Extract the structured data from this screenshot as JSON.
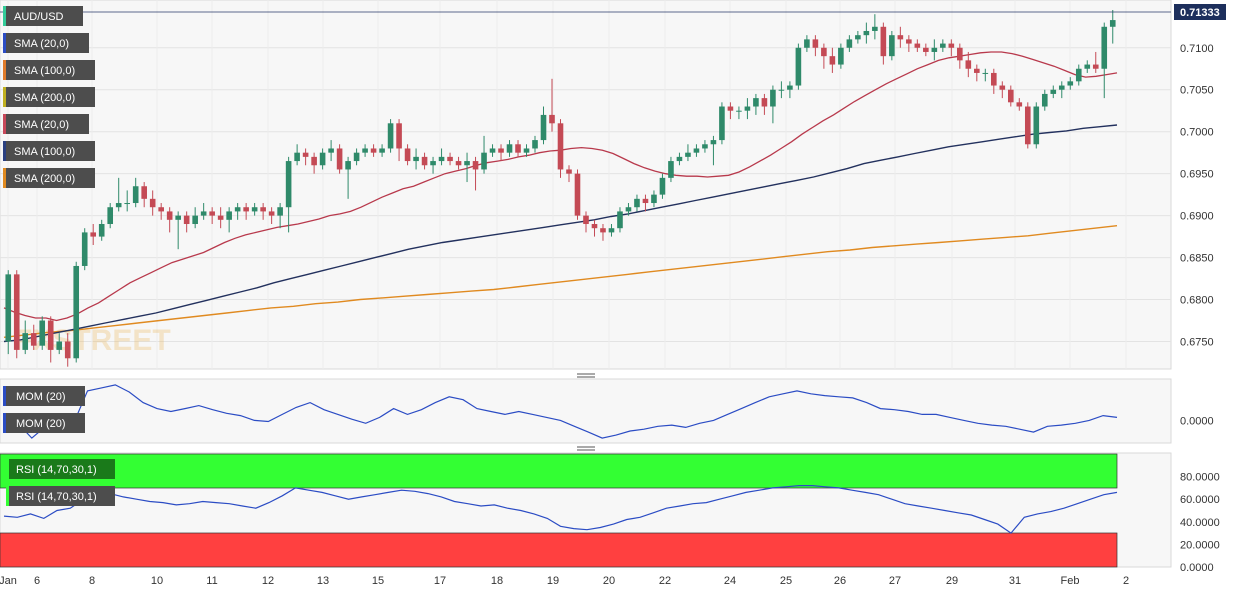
{
  "chart_data": [
    {
      "type": "candlestick",
      "title": "AUD/USD",
      "last_price": "0.71333",
      "y_ticks": [
        "0.7100",
        "0.7050",
        "0.7000",
        "0.6950",
        "0.6900",
        "0.6850",
        "0.6800",
        "0.6750"
      ],
      "ylim": [
        0.6722,
        0.7145
      ],
      "x_ticks": [
        "Jan",
        "6",
        "8",
        "10",
        "11",
        "12",
        "13",
        "15",
        "17",
        "18",
        "19",
        "20",
        "22",
        "24",
        "25",
        "26",
        "27",
        "29",
        "31",
        "Feb",
        "2"
      ],
      "indicator_labels": [
        "SMA (20,0)",
        "SMA (100,0)",
        "SMA (200,0)",
        "SMA (20,0)",
        "SMA (100,0)",
        "SMA (200,0)"
      ],
      "candles": [
        [
          0.675,
          0.683,
          0.6735,
          0.6835
        ],
        [
          0.683,
          0.674,
          0.673,
          0.6835
        ],
        [
          0.674,
          0.676,
          0.6735,
          0.6775
        ],
        [
          0.676,
          0.6745,
          0.674,
          0.677
        ],
        [
          0.6745,
          0.6775,
          0.674,
          0.678
        ],
        [
          0.6775,
          0.674,
          0.6725,
          0.678
        ],
        [
          0.674,
          0.675,
          0.6735,
          0.676
        ],
        [
          0.675,
          0.673,
          0.672,
          0.676
        ],
        [
          0.673,
          0.684,
          0.6725,
          0.6845
        ],
        [
          0.684,
          0.688,
          0.6835,
          0.6885
        ],
        [
          0.688,
          0.6875,
          0.6865,
          0.689
        ],
        [
          0.6875,
          0.689,
          0.687,
          0.6895
        ],
        [
          0.689,
          0.691,
          0.6885,
          0.6915
        ],
        [
          0.691,
          0.6915,
          0.6905,
          0.6945
        ],
        [
          0.6915,
          0.6915,
          0.6905,
          0.693
        ],
        [
          0.6915,
          0.6935,
          0.691,
          0.6945
        ],
        [
          0.6935,
          0.692,
          0.691,
          0.694
        ],
        [
          0.692,
          0.691,
          0.69,
          0.693
        ],
        [
          0.691,
          0.6905,
          0.6895,
          0.6915
        ],
        [
          0.6905,
          0.6895,
          0.688,
          0.691
        ],
        [
          0.6895,
          0.69,
          0.686,
          0.6905
        ],
        [
          0.69,
          0.689,
          0.688,
          0.6905
        ],
        [
          0.689,
          0.69,
          0.6885,
          0.691
        ],
        [
          0.69,
          0.6905,
          0.6895,
          0.6915
        ],
        [
          0.6905,
          0.69,
          0.689,
          0.691
        ],
        [
          0.69,
          0.6895,
          0.6885,
          0.691
        ],
        [
          0.6895,
          0.6905,
          0.688,
          0.691
        ],
        [
          0.6905,
          0.691,
          0.6895,
          0.6915
        ],
        [
          0.691,
          0.6905,
          0.6895,
          0.6915
        ],
        [
          0.6905,
          0.691,
          0.69,
          0.6915
        ],
        [
          0.691,
          0.6905,
          0.6895,
          0.6915
        ],
        [
          0.6905,
          0.69,
          0.689,
          0.691
        ],
        [
          0.69,
          0.691,
          0.6885,
          0.6915
        ],
        [
          0.691,
          0.6965,
          0.688,
          0.697
        ],
        [
          0.6965,
          0.6975,
          0.696,
          0.6985
        ],
        [
          0.6975,
          0.697,
          0.696,
          0.698
        ],
        [
          0.697,
          0.696,
          0.695,
          0.6975
        ],
        [
          0.696,
          0.6975,
          0.6955,
          0.698
        ],
        [
          0.6975,
          0.698,
          0.6965,
          0.699
        ],
        [
          0.698,
          0.6955,
          0.695,
          0.6985
        ],
        [
          0.6955,
          0.6965,
          0.692,
          0.697
        ],
        [
          0.6965,
          0.6975,
          0.696,
          0.698
        ],
        [
          0.6975,
          0.698,
          0.697,
          0.6985
        ],
        [
          0.698,
          0.6975,
          0.697,
          0.6985
        ],
        [
          0.6975,
          0.698,
          0.697,
          0.6985
        ],
        [
          0.698,
          0.701,
          0.6975,
          0.7015
        ],
        [
          0.701,
          0.698,
          0.6965,
          0.7015
        ],
        [
          0.698,
          0.6965,
          0.696,
          0.6985
        ],
        [
          0.6965,
          0.697,
          0.6955,
          0.698
        ],
        [
          0.697,
          0.696,
          0.6955,
          0.6975
        ],
        [
          0.696,
          0.6965,
          0.695,
          0.697
        ],
        [
          0.6965,
          0.697,
          0.696,
          0.698
        ],
        [
          0.697,
          0.6965,
          0.696,
          0.6975
        ],
        [
          0.6965,
          0.696,
          0.6955,
          0.697
        ],
        [
          0.696,
          0.6965,
          0.694,
          0.6975
        ],
        [
          0.6965,
          0.6955,
          0.693,
          0.697
        ],
        [
          0.6955,
          0.6975,
          0.695,
          0.6995
        ],
        [
          0.6975,
          0.698,
          0.697,
          0.6985
        ],
        [
          0.698,
          0.6975,
          0.6965,
          0.6985
        ],
        [
          0.6975,
          0.6985,
          0.697,
          0.699
        ],
        [
          0.6985,
          0.6975,
          0.697,
          0.699
        ],
        [
          0.6975,
          0.698,
          0.697,
          0.6985
        ],
        [
          0.698,
          0.699,
          0.6975,
          0.6995
        ],
        [
          0.699,
          0.702,
          0.6985,
          0.703
        ],
        [
          0.702,
          0.701,
          0.7,
          0.7063
        ],
        [
          0.701,
          0.6955,
          0.6945,
          0.7015
        ],
        [
          0.6955,
          0.695,
          0.694,
          0.696
        ],
        [
          0.695,
          0.69,
          0.6895,
          0.6955
        ],
        [
          0.69,
          0.689,
          0.688,
          0.6905
        ],
        [
          0.689,
          0.6885,
          0.6875,
          0.6895
        ],
        [
          0.6885,
          0.688,
          0.687,
          0.689
        ],
        [
          0.688,
          0.6885,
          0.6875,
          0.689
        ],
        [
          0.6885,
          0.6905,
          0.688,
          0.691
        ],
        [
          0.6905,
          0.691,
          0.69,
          0.6915
        ],
        [
          0.691,
          0.692,
          0.6905,
          0.6925
        ],
        [
          0.692,
          0.6915,
          0.6905,
          0.6925
        ],
        [
          0.6915,
          0.6925,
          0.691,
          0.693
        ],
        [
          0.6925,
          0.6945,
          0.692,
          0.695
        ],
        [
          0.6945,
          0.6965,
          0.694,
          0.697
        ],
        [
          0.6965,
          0.697,
          0.696,
          0.6975
        ],
        [
          0.697,
          0.6975,
          0.6965,
          0.6985
        ],
        [
          0.6975,
          0.698,
          0.697,
          0.6985
        ],
        [
          0.698,
          0.6985,
          0.6975,
          0.699
        ],
        [
          0.6985,
          0.699,
          0.696,
          0.6995
        ],
        [
          0.699,
          0.703,
          0.6985,
          0.7035
        ],
        [
          0.703,
          0.7025,
          0.7015,
          0.7035
        ],
        [
          0.7025,
          0.7025,
          0.7015,
          0.703
        ],
        [
          0.7025,
          0.703,
          0.7015,
          0.704
        ],
        [
          0.703,
          0.704,
          0.702,
          0.7045
        ],
        [
          0.704,
          0.703,
          0.702,
          0.7045
        ],
        [
          0.703,
          0.705,
          0.701,
          0.7055
        ],
        [
          0.705,
          0.705,
          0.704,
          0.706
        ],
        [
          0.705,
          0.7055,
          0.704,
          0.706
        ],
        [
          0.7055,
          0.71,
          0.705,
          0.7105
        ],
        [
          0.71,
          0.711,
          0.7095,
          0.7115
        ],
        [
          0.711,
          0.71,
          0.709,
          0.7115
        ],
        [
          0.71,
          0.709,
          0.7075,
          0.7105
        ],
        [
          0.709,
          0.708,
          0.707,
          0.71
        ],
        [
          0.708,
          0.71,
          0.7075,
          0.7105
        ],
        [
          0.71,
          0.711,
          0.7095,
          0.7115
        ],
        [
          0.711,
          0.7115,
          0.7105,
          0.712
        ],
        [
          0.7115,
          0.712,
          0.7105,
          0.713
        ],
        [
          0.712,
          0.7125,
          0.711,
          0.714
        ],
        [
          0.7125,
          0.709,
          0.708,
          0.713
        ],
        [
          0.709,
          0.7115,
          0.7085,
          0.712
        ],
        [
          0.7115,
          0.711,
          0.71,
          0.7125
        ],
        [
          0.711,
          0.7105,
          0.7095,
          0.7115
        ],
        [
          0.7105,
          0.71,
          0.7095,
          0.711
        ],
        [
          0.71,
          0.7095,
          0.709,
          0.7105
        ],
        [
          0.7095,
          0.71,
          0.7085,
          0.711
        ],
        [
          0.71,
          0.7105,
          0.7095,
          0.711
        ],
        [
          0.7105,
          0.71,
          0.709,
          0.711
        ],
        [
          0.71,
          0.7085,
          0.7075,
          0.7105
        ],
        [
          0.7085,
          0.7075,
          0.7065,
          0.7095
        ],
        [
          0.7075,
          0.707,
          0.706,
          0.708
        ],
        [
          0.707,
          0.707,
          0.706,
          0.7075
        ],
        [
          0.707,
          0.7055,
          0.7045,
          0.7075
        ],
        [
          0.7055,
          0.705,
          0.704,
          0.706
        ],
        [
          0.705,
          0.7035,
          0.703,
          0.7055
        ],
        [
          0.7035,
          0.703,
          0.7025,
          0.704
        ],
        [
          0.703,
          0.6985,
          0.698,
          0.7035
        ],
        [
          0.6985,
          0.703,
          0.698,
          0.7035
        ],
        [
          0.703,
          0.7045,
          0.7025,
          0.705
        ],
        [
          0.7045,
          0.705,
          0.704,
          0.7055
        ],
        [
          0.705,
          0.7055,
          0.704,
          0.706
        ],
        [
          0.7055,
          0.706,
          0.705,
          0.7065
        ],
        [
          0.706,
          0.7075,
          0.7055,
          0.708
        ],
        [
          0.7075,
          0.708,
          0.707,
          0.7085
        ],
        [
          0.708,
          0.7075,
          0.707,
          0.7095
        ],
        [
          0.7075,
          0.7125,
          0.704,
          0.713
        ],
        [
          0.7125,
          0.7133,
          0.7105,
          0.7145
        ]
      ],
      "sma20": [
        0.679,
        0.6785,
        0.6781,
        0.6778,
        0.6778,
        0.6775,
        0.6778,
        0.6783,
        0.679,
        0.6796,
        0.6804,
        0.6812,
        0.682,
        0.6826,
        0.6832,
        0.6838,
        0.6844,
        0.6848,
        0.6852,
        0.6856,
        0.6862,
        0.6868,
        0.6873,
        0.6877,
        0.688,
        0.6883,
        0.6886,
        0.6888,
        0.689,
        0.6893,
        0.6896,
        0.69,
        0.6902,
        0.6905,
        0.691,
        0.6916,
        0.6922,
        0.6927,
        0.6932,
        0.6935,
        0.694,
        0.6945,
        0.695,
        0.6953,
        0.6956,
        0.696,
        0.6963,
        0.6965,
        0.6967,
        0.697,
        0.6972,
        0.6975,
        0.6977,
        0.6978,
        0.698,
        0.6981,
        0.698,
        0.6978,
        0.6974,
        0.6968,
        0.6962,
        0.6957,
        0.6953,
        0.695,
        0.6948,
        0.6947,
        0.6947,
        0.6946,
        0.6947,
        0.6948,
        0.6952,
        0.6958,
        0.6965,
        0.6972,
        0.698,
        0.6988,
        0.6997,
        0.7005,
        0.7013,
        0.702,
        0.7028,
        0.7036,
        0.7043,
        0.705,
        0.7057,
        0.7063,
        0.7069,
        0.7075,
        0.708,
        0.7085,
        0.7088,
        0.709,
        0.7092,
        0.7094,
        0.7095,
        0.7095,
        0.7093,
        0.709,
        0.7086,
        0.7082,
        0.7078,
        0.7073,
        0.7068,
        0.7065,
        0.7066,
        0.7068,
        0.707
      ],
      "sma100": [
        0.675,
        0.6752,
        0.6756,
        0.676,
        0.6764,
        0.6768,
        0.6772,
        0.6776,
        0.678,
        0.6784,
        0.6789,
        0.6794,
        0.6799,
        0.6804,
        0.6809,
        0.6814,
        0.682,
        0.6825,
        0.683,
        0.6835,
        0.684,
        0.6845,
        0.685,
        0.6855,
        0.686,
        0.6864,
        0.6868,
        0.6871,
        0.6874,
        0.6877,
        0.688,
        0.6883,
        0.6886,
        0.6889,
        0.6892,
        0.6895,
        0.6899,
        0.6902,
        0.6906,
        0.691,
        0.6914,
        0.6918,
        0.6922,
        0.6926,
        0.693,
        0.6934,
        0.6938,
        0.6942,
        0.6946,
        0.6951,
        0.6956,
        0.6962,
        0.6966,
        0.697,
        0.6974,
        0.6978,
        0.6982,
        0.6985,
        0.6988,
        0.6991,
        0.6994,
        0.6997,
        0.6999,
        0.7001,
        0.7004,
        0.7006,
        0.7008
      ],
      "sma200": [
        0.6755,
        0.6758,
        0.6761,
        0.6763,
        0.6766,
        0.6769,
        0.6772,
        0.6775,
        0.6778,
        0.6781,
        0.6784,
        0.6787,
        0.679,
        0.6792,
        0.6795,
        0.6797,
        0.68,
        0.6802,
        0.6804,
        0.6806,
        0.6808,
        0.681,
        0.6812,
        0.6815,
        0.6818,
        0.6821,
        0.6824,
        0.6827,
        0.683,
        0.6833,
        0.6836,
        0.6839,
        0.6842,
        0.6845,
        0.6848,
        0.6851,
        0.6854,
        0.6857,
        0.6859,
        0.6862,
        0.6864,
        0.6866,
        0.6868,
        0.687,
        0.6872,
        0.6874,
        0.6876,
        0.6879,
        0.6882,
        0.6885,
        0.6888
      ],
      "watermark": "FXSTREET"
    },
    {
      "type": "line",
      "title": "MOM (20)",
      "y_ticks": [
        "0.0000"
      ],
      "series": [
        {
          "name": "MOM (20)",
          "values": [
            -0.001,
            -0.0005,
            -0.003,
            -0.001,
            0.001,
            -0.0005,
            0.005,
            0.0055,
            0.006,
            0.0048,
            0.003,
            0.002,
            0.0015,
            0.002,
            0.0025,
            0.0018,
            0.0012,
            0.0008,
            0.0,
            -0.0002,
            0.001,
            0.0022,
            0.003,
            0.0018,
            0.001,
            0.0002,
            -0.0005,
            0.0005,
            0.002,
            0.001,
            0.0018,
            0.003,
            0.004,
            0.0035,
            0.002,
            0.0015,
            0.001,
            0.0015,
            0.001,
            0.0005,
            0.0,
            -0.001,
            -0.002,
            -0.003,
            -0.0025,
            -0.0018,
            -0.0015,
            -0.001,
            -0.0008,
            -0.0012,
            -0.0005,
            0.0,
            0.001,
            0.002,
            0.003,
            0.004,
            0.0045,
            0.005,
            0.0045,
            0.0042,
            0.004,
            0.0038,
            0.003,
            0.002,
            0.0018,
            0.0015,
            0.001,
            0.001,
            0.0005,
            0.0,
            -0.0005,
            -0.0008,
            -0.001,
            -0.0015,
            -0.002,
            -0.001,
            -0.0008,
            -0.0005,
            0.0,
            0.0008,
            0.0005
          ]
        }
      ]
    },
    {
      "type": "line",
      "title": "RSI (14,70,30,1)",
      "y_ticks": [
        "80.0000",
        "60.0000",
        "40.0000",
        "20.0000",
        "0.0000"
      ],
      "ylim": [
        0,
        100
      ],
      "bands": {
        "overbought": 70,
        "oversold": 30,
        "overbought_color": "#33ff33",
        "oversold_color": "#ff4040"
      },
      "series": [
        {
          "name": "RSI (14,70,30,1)",
          "values": [
            45,
            44,
            47,
            43,
            50,
            52,
            60,
            66,
            65,
            62,
            60,
            58,
            57,
            55,
            56,
            58,
            57,
            56,
            54,
            52,
            57,
            63,
            70,
            68,
            66,
            63,
            60,
            62,
            64,
            66,
            68,
            67,
            65,
            62,
            58,
            56,
            54,
            55,
            52,
            50,
            47,
            43,
            36,
            34,
            33,
            35,
            38,
            42,
            44,
            48,
            52,
            54,
            56,
            57,
            60,
            63,
            66,
            68,
            70,
            71,
            72,
            72,
            71,
            70,
            68,
            66,
            64,
            60,
            56,
            54,
            52,
            50,
            48,
            46,
            42,
            38,
            30,
            44,
            47,
            49,
            52,
            56,
            60,
            64,
            66
          ]
        }
      ]
    }
  ]
}
